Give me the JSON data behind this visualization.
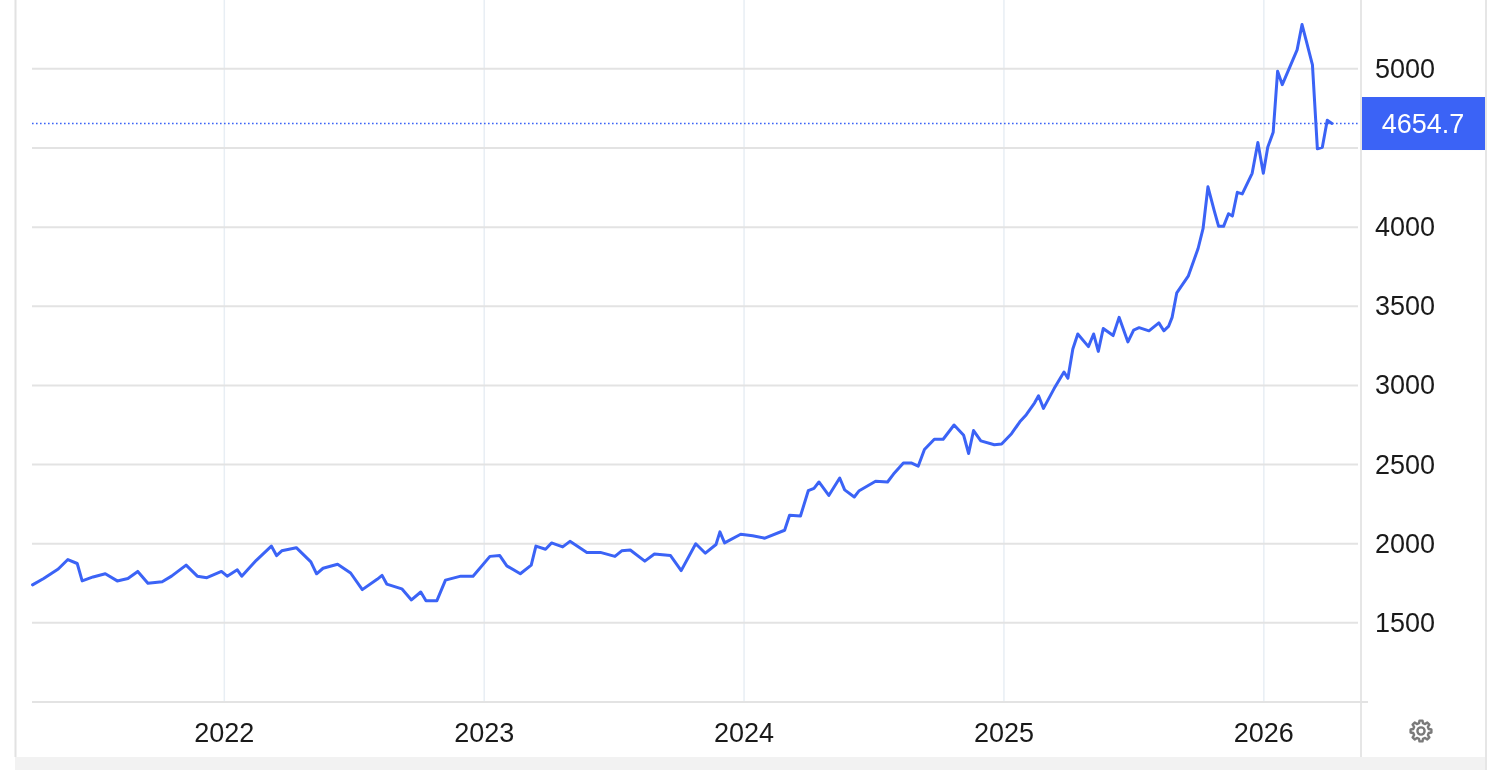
{
  "chart_data": {
    "type": "line",
    "x": [
      2021.262,
      2021.305,
      2021.361,
      2021.398,
      2021.434,
      2021.453,
      2021.495,
      2021.542,
      2021.588,
      2021.629,
      2021.667,
      2021.706,
      2021.761,
      2021.797,
      2021.853,
      2021.896,
      2021.933,
      2021.989,
      2022.011,
      2022.05,
      2022.067,
      2022.123,
      2022.181,
      2022.201,
      2022.221,
      2022.277,
      2022.333,
      2022.355,
      2022.38,
      2022.436,
      2022.486,
      2022.531,
      2022.588,
      2022.607,
      2022.625,
      2022.683,
      2022.72,
      2022.756,
      2022.776,
      2022.818,
      2022.851,
      2022.91,
      2022.957,
      2023.022,
      2023.06,
      2023.087,
      2023.139,
      2023.181,
      2023.199,
      2023.236,
      2023.259,
      2023.302,
      2023.33,
      2023.395,
      2023.447,
      2023.503,
      2023.529,
      2023.562,
      2023.618,
      2023.655,
      2023.717,
      2023.758,
      2023.814,
      2023.851,
      2023.892,
      2023.907,
      2023.925,
      2023.987,
      2024.033,
      2024.08,
      2024.156,
      2024.175,
      2024.217,
      2024.247,
      2024.269,
      2024.288,
      2024.326,
      2024.368,
      2024.387,
      2024.424,
      2024.443,
      2024.506,
      2024.552,
      2024.575,
      2024.613,
      2024.643,
      2024.67,
      2024.694,
      2024.732,
      2024.766,
      2024.808,
      2024.845,
      2024.864,
      2024.883,
      2024.911,
      2024.963,
      2024.991,
      2025.029,
      2025.061,
      2025.086,
      2025.118,
      2025.133,
      2025.152,
      2025.193,
      2025.231,
      2025.246,
      2025.265,
      2025.284,
      2025.325,
      2025.345,
      2025.363,
      2025.382,
      2025.42,
      2025.443,
      2025.477,
      2025.499,
      2025.52,
      2025.558,
      2025.596,
      2025.615,
      2025.634,
      2025.647,
      2025.665,
      2025.709,
      2025.747,
      2025.766,
      2025.785,
      2025.809,
      2025.826,
      2025.845,
      2025.864,
      2025.879,
      2025.898,
      2025.917,
      2025.955,
      2025.977,
      2025.998,
      2026.015,
      2026.036,
      2026.053,
      2026.071,
      2026.128,
      2026.147,
      2026.166,
      2026.187,
      2026.206,
      2026.225,
      2026.244,
      2026.262
    ],
    "series": [
      {
        "color": "#3b63f6",
        "values": [
          1740,
          1780,
          1840,
          1900,
          1875,
          1765,
          1790,
          1810,
          1765,
          1780,
          1825,
          1750,
          1760,
          1795,
          1865,
          1795,
          1785,
          1825,
          1795,
          1835,
          1795,
          1895,
          1985,
          1925,
          1955,
          1975,
          1885,
          1810,
          1845,
          1870,
          1815,
          1710,
          1775,
          1800,
          1745,
          1715,
          1645,
          1695,
          1640,
          1640,
          1770,
          1795,
          1795,
          1920,
          1925,
          1860,
          1810,
          1865,
          1985,
          1965,
          2005,
          1980,
          2015,
          1945,
          1945,
          1920,
          1955,
          1960,
          1890,
          1935,
          1925,
          1830,
          2000,
          1940,
          1995,
          2075,
          2005,
          2060,
          2050,
          2035,
          2085,
          2180,
          2175,
          2335,
          2350,
          2390,
          2305,
          2415,
          2340,
          2295,
          2335,
          2395,
          2390,
          2440,
          2510,
          2510,
          2490,
          2595,
          2660,
          2660,
          2750,
          2685,
          2570,
          2715,
          2650,
          2625,
          2630,
          2695,
          2770,
          2815,
          2890,
          2935,
          2855,
          2980,
          3085,
          3045,
          3230,
          3325,
          3245,
          3325,
          3215,
          3360,
          3315,
          3430,
          3275,
          3350,
          3365,
          3345,
          3395,
          3345,
          3375,
          3430,
          3585,
          3690,
          3865,
          3990,
          4255,
          4105,
          4005,
          4005,
          4085,
          4070,
          4220,
          4210,
          4340,
          4535,
          4340,
          4505,
          4600,
          4985,
          4900,
          5120,
          5280,
          5160,
          5025,
          4495,
          4505,
          4675,
          4654.7
        ]
      }
    ],
    "xlim": [
      2021.26,
      2026.37
    ],
    "xticks": [
      2022,
      2023,
      2024,
      2025,
      2026
    ],
    "ylim": [
      1000,
      5435
    ],
    "yticks": [
      1500,
      2000,
      2500,
      3000,
      3500,
      4000,
      {
        "value": 4500,
        "label": null
      },
      5000
    ],
    "grid": true,
    "ref_lines": [
      {
        "axis": "y",
        "value": 4654.7,
        "label": "4654.7",
        "color": "#3b63f6",
        "line_style": "dotted"
      }
    ]
  }
}
